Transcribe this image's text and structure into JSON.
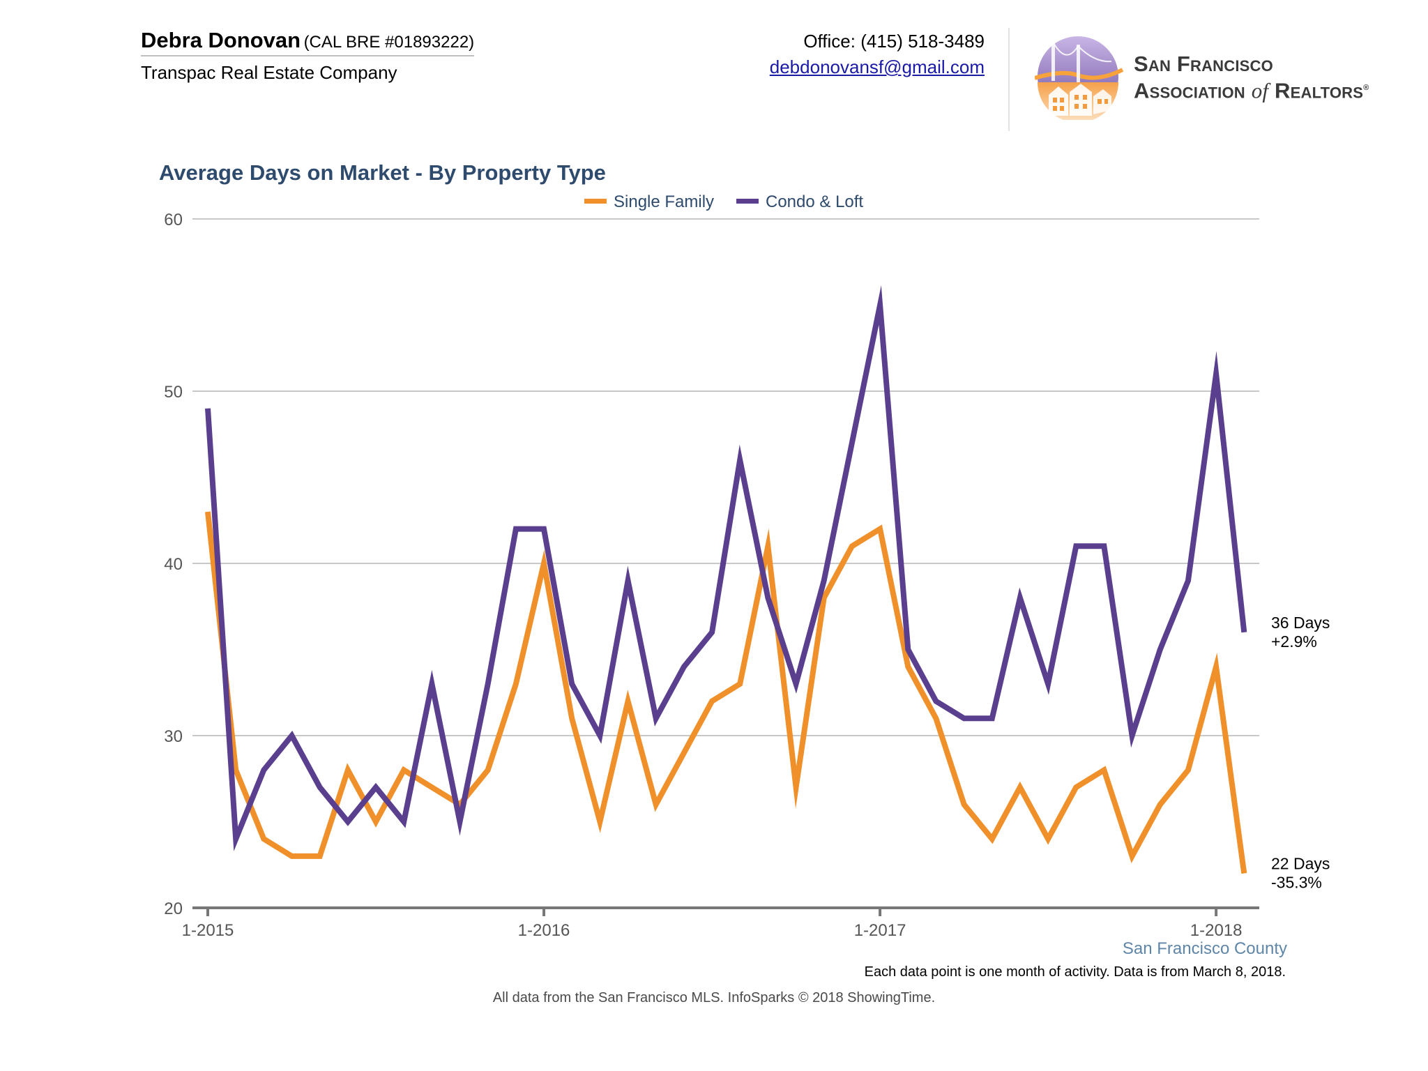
{
  "header": {
    "agent_name": "Debra Donovan",
    "agent_license": "(CAL BRE #01893222)",
    "company": "Transpac Real Estate Company",
    "office_phone": "Office: (415) 518-3489",
    "email": "debdonovansf@gmail.com",
    "logo_line1": "San Francisco",
    "logo_line2a": "Association",
    "logo_line2b": "of",
    "logo_line2c": "Realtors",
    "logo_reg": "®",
    "logo_icon": "golden-gate-bridge-houses-logo"
  },
  "colors": {
    "single_family": "#f0902a",
    "condo_loft": "#5b3f8f",
    "title": "#2e4a6d",
    "grid": "#c8c8c8",
    "axis": "#777777",
    "region_label": "#5f86a8"
  },
  "chart_data": {
    "type": "line",
    "title": "Average Days on Market - By Property Type",
    "xlabel": "",
    "ylabel": "",
    "ylim": [
      20,
      60
    ],
    "yticks": [
      "20",
      "30",
      "40",
      "50",
      "60"
    ],
    "xticks": [
      "1-2015",
      "1-2016",
      "1-2017",
      "1-2018"
    ],
    "grid": true,
    "legend": "top-center",
    "region_label": "San Francisco County",
    "x": [
      "2015-01",
      "2015-02",
      "2015-03",
      "2015-04",
      "2015-05",
      "2015-06",
      "2015-07",
      "2015-08",
      "2015-09",
      "2015-10",
      "2015-11",
      "2015-12",
      "2016-01",
      "2016-02",
      "2016-03",
      "2016-04",
      "2016-05",
      "2016-06",
      "2016-07",
      "2016-08",
      "2016-09",
      "2016-10",
      "2016-11",
      "2016-12",
      "2017-01",
      "2017-02",
      "2017-03",
      "2017-04",
      "2017-05",
      "2017-06",
      "2017-07",
      "2017-08",
      "2017-09",
      "2017-10",
      "2017-11",
      "2017-12",
      "2018-01",
      "2018-02"
    ],
    "series": [
      {
        "name": "Single Family",
        "values": [
          43,
          28,
          24,
          23,
          23,
          28,
          25,
          28,
          27,
          26,
          28,
          33,
          40,
          31,
          25,
          32,
          26,
          29,
          32,
          33,
          41,
          27,
          38,
          41,
          42,
          34,
          31,
          26,
          24,
          27,
          24,
          27,
          28,
          23,
          26,
          28,
          34,
          22
        ],
        "end_label": "22 Days",
        "end_change": "-35.3%"
      },
      {
        "name": "Condo & Loft",
        "values": [
          49,
          24,
          28,
          30,
          27,
          25,
          27,
          25,
          33,
          25,
          33,
          42,
          42,
          33,
          30,
          39,
          31,
          34,
          36,
          46,
          38,
          33,
          39,
          47,
          55,
          35,
          32,
          31,
          31,
          38,
          33,
          41,
          41,
          30,
          35,
          39,
          51,
          36
        ],
        "end_label": "36 Days",
        "end_change": "+2.9%"
      }
    ]
  },
  "footer": {
    "note": "Each data point is one month of activity. Data is from March 8, 2018.",
    "source": "All data from the San Francisco MLS. InfoSparks © 2018 ShowingTime."
  }
}
